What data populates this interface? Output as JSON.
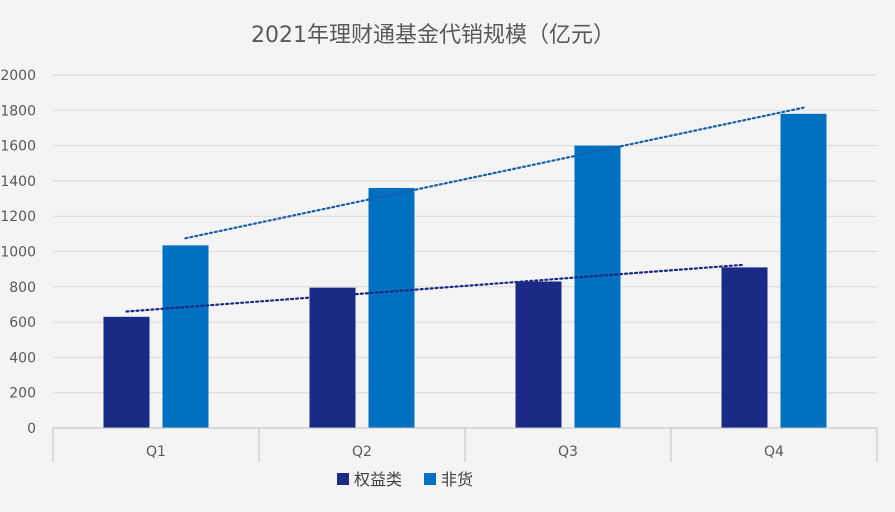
{
  "chart_data": {
    "type": "bar",
    "title": "2021年理财通基金代销规模（亿元）",
    "categories": [
      "Q1",
      "Q2",
      "Q3",
      "Q4"
    ],
    "series": [
      {
        "name": "权益类",
        "values": [
          630,
          795,
          830,
          910
        ],
        "color": "#1b2a85"
      },
      {
        "name": "非货",
        "values": [
          1035,
          1360,
          1600,
          1780
        ],
        "color": "#0070c0"
      }
    ],
    "yticks": [
      0,
      200,
      400,
      600,
      800,
      1000,
      1200,
      1400,
      1600,
      1800,
      2000
    ],
    "ylim": [
      0,
      2000
    ],
    "trendlines": [
      {
        "series": "权益类",
        "start": 660,
        "end": 925,
        "color": "#1b2a85"
      },
      {
        "series": "非货",
        "start": 1075,
        "end": 1815,
        "color": "#1a5fae"
      }
    ],
    "xlabel": "",
    "ylabel": "",
    "grid": true,
    "legend": "bottom"
  }
}
